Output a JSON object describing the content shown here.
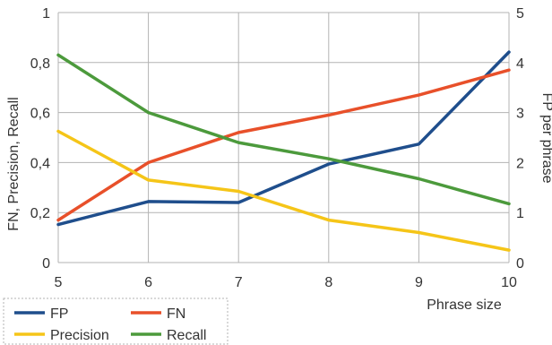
{
  "chart_data": {
    "type": "line",
    "x": [
      5,
      6,
      7,
      8,
      9,
      10
    ],
    "xlabel": "Phrase size",
    "ylabel_left": "FN, Precision, Recall",
    "ylabel_right": "FP per phrase",
    "xlim": [
      5,
      10
    ],
    "ylim_left": [
      0,
      1
    ],
    "ylim_right": [
      0,
      5
    ],
    "x_ticks": [
      "5",
      "6",
      "7",
      "8",
      "9",
      "10"
    ],
    "y_left_ticks": [
      "0",
      "0,2",
      "0,4",
      "0,6",
      "0,8",
      "1"
    ],
    "y_right_ticks": [
      "0",
      "1",
      "2",
      "3",
      "4",
      "5"
    ],
    "grid": true,
    "legend_position": "bottom-left",
    "series": [
      {
        "name": "FP",
        "axis": "right",
        "color": "#1f4e8c",
        "values": [
          0.76,
          1.22,
          1.2,
          1.97,
          2.37,
          4.21
        ]
      },
      {
        "name": "FN",
        "axis": "left",
        "color": "#e8502a",
        "values": [
          0.17,
          0.4,
          0.52,
          0.59,
          0.67,
          0.77
        ]
      },
      {
        "name": "Precision",
        "axis": "left",
        "color": "#f5c518",
        "values": [
          0.525,
          0.33,
          0.285,
          0.17,
          0.12,
          0.05
        ]
      },
      {
        "name": "Recall",
        "axis": "left",
        "color": "#4c9a3c",
        "values": [
          0.83,
          0.6,
          0.48,
          0.415,
          0.335,
          0.235
        ]
      }
    ]
  }
}
